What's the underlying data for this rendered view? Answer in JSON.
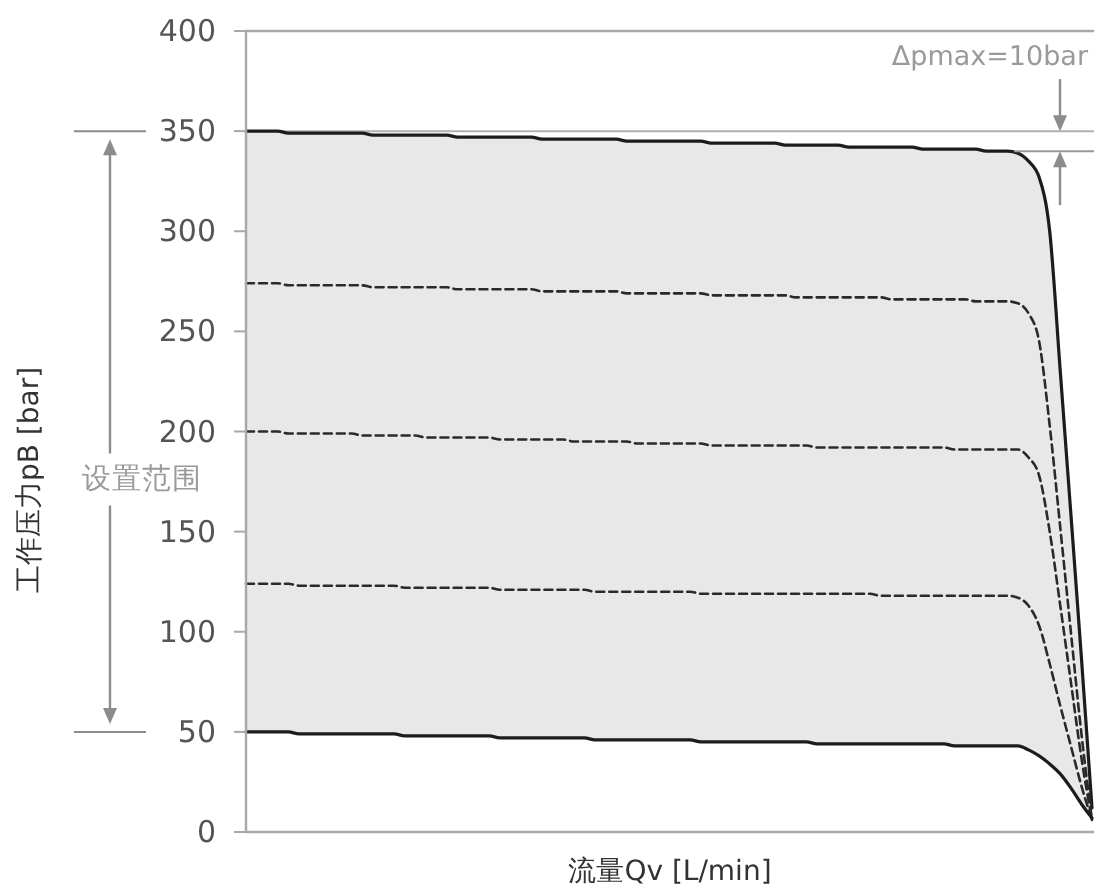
{
  "chart_data": {
    "type": "line",
    "xlabel": "流量Qv [L/min]",
    "ylabel": "工作压力pB [bar]",
    "tick_labels": "y",
    "ylim": [
      0,
      400
    ],
    "yticks": [
      0,
      50,
      100,
      150,
      200,
      250,
      300,
      350,
      400
    ],
    "categories": [
      null,
      null,
      null,
      null,
      null,
      null,
      null,
      null,
      null,
      null,
      null,
      null,
      null,
      null,
      null,
      null,
      null,
      null,
      null,
      null,
      null,
      null,
      null,
      null,
      null,
      null,
      null,
      null,
      null,
      null,
      null,
      null,
      null,
      null,
      null,
      null,
      null,
      null,
      null,
      null,
      null,
      null,
      null,
      null,
      null,
      null,
      null,
      null,
      null,
      null,
      null,
      null,
      null,
      null,
      null,
      null,
      null,
      null,
      null,
      null,
      null,
      null,
      null,
      null,
      null,
      null,
      null,
      null,
      null,
      null,
      null,
      null,
      null,
      null,
      null,
      null,
      null,
      null,
      null,
      null,
      null
    ],
    "series": [
      {
        "color": "#1c1c1c",
        "line_style": "solid",
        "values": [
          350,
          350,
          350,
          350,
          349,
          349,
          349,
          349,
          349,
          349,
          349,
          349,
          348,
          348,
          348,
          348,
          348,
          348,
          348,
          348,
          347,
          347,
          347,
          347,
          347,
          347,
          347,
          347,
          346,
          346,
          346,
          346,
          346,
          346,
          346,
          346,
          345,
          345,
          345,
          345,
          345,
          345,
          345,
          345,
          344,
          344,
          344,
          344,
          344,
          344,
          344,
          343,
          343,
          343,
          343,
          343,
          343,
          342,
          342,
          342,
          342,
          342,
          342,
          342,
          341,
          341,
          341,
          341,
          341,
          341,
          340,
          340,
          340,
          339,
          335,
          327,
          300,
          230,
          159,
          87,
          12
        ],
        "upper": [
          350,
          350,
          350,
          350,
          349,
          349,
          349,
          349,
          349,
          349,
          349,
          349,
          348,
          348,
          348,
          348,
          348,
          348,
          348,
          348,
          347,
          347,
          347,
          347,
          347,
          347,
          347,
          347,
          346,
          346,
          346,
          346,
          346,
          346,
          346,
          346,
          345,
          345,
          345,
          345,
          345,
          345,
          345,
          345,
          344,
          344,
          344,
          344,
          344,
          344,
          344,
          343,
          343,
          343,
          343,
          343,
          343,
          342,
          342,
          342,
          342,
          342,
          342,
          342,
          341,
          341,
          341,
          341,
          341,
          341,
          340,
          340,
          340,
          339,
          335,
          327,
          300,
          230,
          159,
          87,
          12
        ],
        "lower": [
          50,
          50,
          50,
          50,
          50,
          49,
          49,
          49,
          49,
          49,
          49,
          49,
          49,
          49,
          49,
          48,
          48,
          48,
          48,
          48,
          48,
          48,
          48,
          48,
          47,
          47,
          47,
          47,
          47,
          47,
          47,
          47,
          47,
          46,
          46,
          46,
          46,
          46,
          46,
          46,
          46,
          46,
          46,
          45,
          45,
          45,
          45,
          45,
          45,
          45,
          45,
          45,
          45,
          45,
          44,
          44,
          44,
          44,
          44,
          44,
          44,
          44,
          44,
          44,
          44,
          44,
          44,
          43,
          43,
          43,
          43,
          43,
          43,
          43,
          41,
          38,
          34,
          29,
          22,
          14,
          7
        ]
      },
      {
        "color": "#2a2a2a",
        "line_style": "dashed",
        "values": [
          274,
          274,
          274,
          274,
          273,
          273,
          273,
          273,
          273,
          273,
          273,
          273,
          272,
          272,
          272,
          272,
          272,
          272,
          272,
          272,
          271,
          271,
          271,
          271,
          271,
          271,
          271,
          271,
          270,
          270,
          270,
          270,
          270,
          270,
          270,
          270,
          269,
          269,
          269,
          269,
          269,
          269,
          269,
          269,
          268,
          268,
          268,
          268,
          268,
          268,
          268,
          268,
          267,
          267,
          267,
          267,
          267,
          267,
          267,
          267,
          267,
          266,
          266,
          266,
          266,
          266,
          266,
          266,
          266,
          265,
          265,
          265,
          265,
          264,
          259,
          245,
          203,
          152,
          100,
          49,
          6
        ]
      },
      {
        "color": "#2a2a2a",
        "line_style": "dashed",
        "values": [
          200,
          200,
          200,
          200,
          199,
          199,
          199,
          199,
          199,
          199,
          199,
          198,
          198,
          198,
          198,
          198,
          198,
          197,
          197,
          197,
          197,
          197,
          197,
          197,
          196,
          196,
          196,
          196,
          196,
          196,
          196,
          195,
          195,
          195,
          195,
          195,
          195,
          194,
          194,
          194,
          194,
          194,
          194,
          194,
          193,
          193,
          193,
          193,
          193,
          193,
          193,
          193,
          193,
          193,
          192,
          192,
          192,
          192,
          192,
          192,
          192,
          192,
          192,
          192,
          192,
          192,
          192,
          191,
          191,
          191,
          191,
          191,
          191,
          191,
          187,
          178,
          150,
          113,
          75,
          37,
          6
        ]
      },
      {
        "color": "#2a2a2a",
        "line_style": "dashed",
        "values": [
          124,
          124,
          124,
          124,
          124,
          123,
          123,
          123,
          123,
          123,
          123,
          123,
          123,
          123,
          123,
          122,
          122,
          122,
          122,
          122,
          122,
          122,
          122,
          122,
          121,
          121,
          121,
          121,
          121,
          121,
          121,
          121,
          121,
          120,
          120,
          120,
          120,
          120,
          120,
          120,
          120,
          120,
          120,
          119,
          119,
          119,
          119,
          119,
          119,
          119,
          119,
          119,
          119,
          119,
          119,
          119,
          119,
          119,
          119,
          119,
          118,
          118,
          118,
          118,
          118,
          118,
          118,
          118,
          118,
          118,
          118,
          118,
          118,
          117,
          113,
          103,
          84,
          63,
          43,
          23,
          6
        ]
      },
      {
        "color": "#1c1c1c",
        "line_style": "solid",
        "values": [
          50,
          50,
          50,
          50,
          50,
          49,
          49,
          49,
          49,
          49,
          49,
          49,
          49,
          49,
          49,
          48,
          48,
          48,
          48,
          48,
          48,
          48,
          48,
          48,
          47,
          47,
          47,
          47,
          47,
          47,
          47,
          47,
          47,
          46,
          46,
          46,
          46,
          46,
          46,
          46,
          46,
          46,
          46,
          45,
          45,
          45,
          45,
          45,
          45,
          45,
          45,
          45,
          45,
          45,
          44,
          44,
          44,
          44,
          44,
          44,
          44,
          44,
          44,
          44,
          44,
          44,
          44,
          43,
          43,
          43,
          43,
          43,
          43,
          43,
          41,
          38,
          34,
          29,
          22,
          14,
          7
        ]
      }
    ],
    "ref_lines": [
      {
        "axis": "y",
        "value": 350,
        "color": "#b0b0b0"
      }
    ],
    "annotations": [
      "设置范围",
      {
        "text": "Δpmax=10bar",
        "y": 340
      }
    ]
  }
}
